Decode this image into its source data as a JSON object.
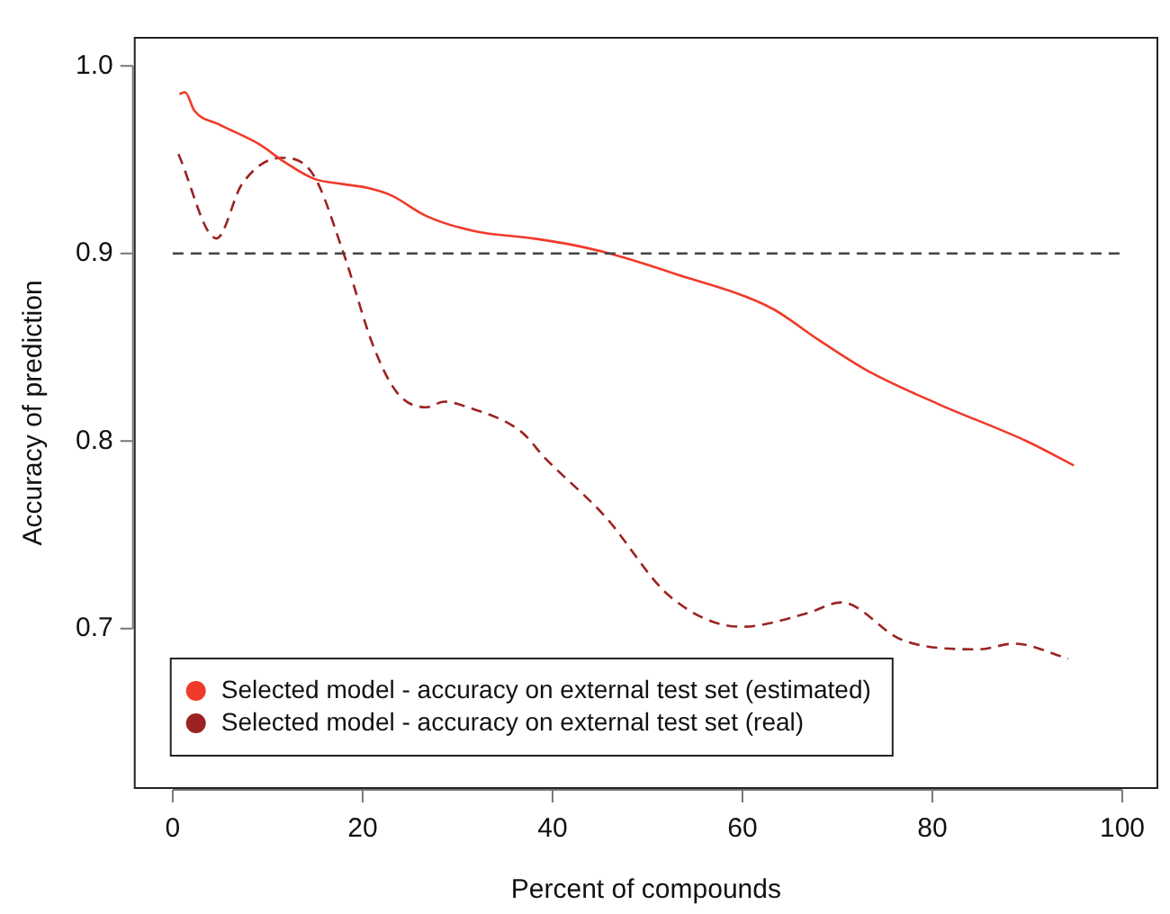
{
  "chart_data": {
    "type": "line",
    "xlabel": "Percent of compounds",
    "ylabel": "Accuracy of prediction",
    "xlim": [
      -4,
      103.7
    ],
    "ylim": [
      0.615,
      1.015
    ],
    "xticks": [
      0,
      20,
      40,
      60,
      80,
      100
    ],
    "yticks": [
      0.7,
      0.8,
      0.9,
      {
        "value": 1,
        "label": "1.0"
      }
    ],
    "grid": false,
    "legend": "bottom left",
    "marker": "none",
    "ref_lines": [
      {
        "axis": "y",
        "value": 0.9,
        "color": "#444444",
        "line_style": "dashed"
      }
    ],
    "series": [
      {
        "name": "Selected model - accuracy on external test set (estimated)",
        "color": "#f03a2a",
        "line_style": "solid",
        "x": [
          0.7,
          1.3,
          2.3,
          4.8,
          9.2,
          11.7,
          14.8,
          17.9,
          20.5,
          23,
          26.7,
          31.7,
          38,
          41.7,
          46,
          53,
          63,
          68,
          73,
          80.5,
          89.9,
          94.9
        ],
        "values": [
          0.985,
          0.986,
          0.976,
          0.969,
          0.958,
          0.949,
          0.94,
          0.937,
          0.935,
          0.931,
          0.92,
          0.912,
          0.908,
          0.905,
          0.9,
          0.889,
          0.871,
          0.854,
          0.838,
          0.82,
          0.8,
          0.787
        ]
      },
      {
        "name": "Selected model - accuracy on external test set (real)",
        "color": "#9b2222",
        "line_style": "dashed",
        "x": [
          0.6,
          4.6,
          7.3,
          11.4,
          14.8,
          18,
          21.1,
          23.6,
          26.7,
          28.6,
          31.1,
          36.7,
          39.2,
          45.5,
          52.4,
          59.9,
          66.7,
          70.4,
          76.8,
          84.9,
          88.6,
          94.3
        ],
        "values": [
          0.953,
          0.908,
          0.937,
          0.951,
          0.942,
          0.9,
          0.851,
          0.826,
          0.818,
          0.821,
          0.818,
          0.805,
          0.791,
          0.76,
          0.717,
          0.701,
          0.708,
          0.714,
          0.694,
          0.689,
          0.692,
          0.684
        ]
      }
    ]
  }
}
